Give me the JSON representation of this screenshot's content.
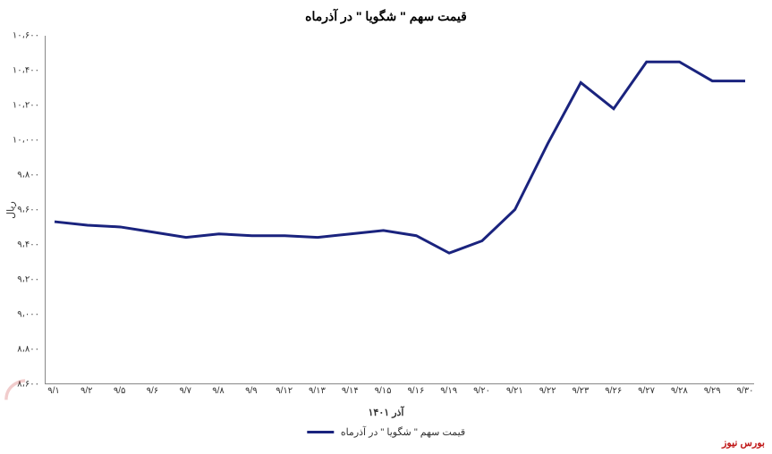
{
  "chart": {
    "type": "line",
    "title": "قیمت سهم \" شگویا \" در آذرماه",
    "y_label": "ریال",
    "x_label": "آذر ۱۴۰۱",
    "legend_label": "قیمت سهم \" شگویا \" در آذرماه",
    "source_label": "بورس نیوز",
    "line_color": "#1a237e",
    "line_width": 3,
    "background_color": "#ffffff",
    "border_color": "#888888",
    "text_color": "#333333",
    "title_fontsize": 14,
    "label_fontsize": 11,
    "tick_fontsize": 10,
    "ylim": [
      8600,
      10600
    ],
    "ytick_step": 200,
    "y_ticks": [
      {
        "value": 8600,
        "label": "۸،۶۰۰"
      },
      {
        "value": 8800,
        "label": "۸،۸۰۰"
      },
      {
        "value": 9000,
        "label": "۹،۰۰۰"
      },
      {
        "value": 9200,
        "label": "۹،۲۰۰"
      },
      {
        "value": 9400,
        "label": "۹،۴۰۰"
      },
      {
        "value": 9600,
        "label": "۹،۶۰۰"
      },
      {
        "value": 9800,
        "label": "۹،۸۰۰"
      },
      {
        "value": 10000,
        "label": "۱۰،۰۰۰"
      },
      {
        "value": 10200,
        "label": "۱۰،۲۰۰"
      },
      {
        "value": 10400,
        "label": "۱۰،۴۰۰"
      },
      {
        "value": 10600,
        "label": "۱۰،۶۰۰"
      }
    ],
    "x_categories": [
      "۹/۱",
      "۹/۲",
      "۹/۵",
      "۹/۶",
      "۹/۷",
      "۹/۸",
      "۹/۹",
      "۹/۱۲",
      "۹/۱۳",
      "۹/۱۴",
      "۹/۱۵",
      "۹/۱۶",
      "۹/۱۹",
      "۹/۲۰",
      "۹/۲۱",
      "۹/۲۲",
      "۹/۲۳",
      "۹/۲۶",
      "۹/۲۷",
      "۹/۲۸",
      "۹/۲۹",
      "۹/۳۰"
    ],
    "values": [
      9530,
      9510,
      9500,
      9470,
      9440,
      9460,
      9450,
      9450,
      9440,
      9460,
      9480,
      9450,
      9350,
      9420,
      9600,
      9980,
      10330,
      10180,
      10450,
      10450,
      10340,
      10340
    ]
  }
}
